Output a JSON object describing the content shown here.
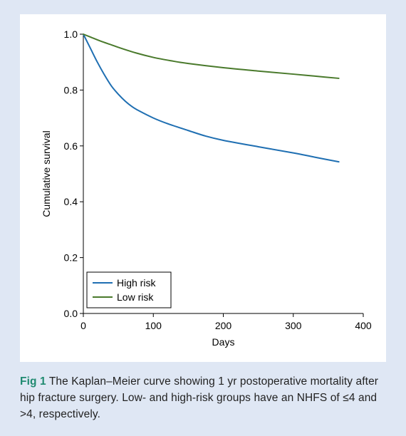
{
  "figure": {
    "label": "Fig 1",
    "caption": "The Kaplan–Meier curve showing 1 yr postoperative mortality after hip fracture surgery. Low- and high-risk groups have an NHFS of ≤4 and >4, respectively."
  },
  "colors": {
    "background": "#dfe7f4",
    "high_risk": "#1f6fb2",
    "low_risk": "#4a7a2c",
    "caption_label": "#1f8a70"
  },
  "chart_data": {
    "type": "line",
    "xlabel": "Days",
    "ylabel": "Cumulative survival",
    "xlim": [
      0,
      400
    ],
    "ylim": [
      0.0,
      1.0
    ],
    "xticks": [
      0,
      100,
      200,
      300,
      400
    ],
    "yticks": [
      0.0,
      0.2,
      0.4,
      0.6,
      0.8,
      1.0
    ],
    "xtick_labels": [
      "0",
      "100",
      "200",
      "300",
      "400"
    ],
    "ytick_labels": [
      "0.0",
      "0.2",
      "0.4",
      "0.6",
      "0.8",
      "1.0"
    ],
    "grid": false,
    "legend_position": "bottom-left",
    "series": [
      {
        "name": "High risk",
        "color": "#1f6fb2",
        "x": [
          0,
          10,
          20,
          30,
          40,
          50,
          60,
          70,
          80,
          100,
          120,
          150,
          175,
          200,
          250,
          300,
          330,
          365
        ],
        "y": [
          1.0,
          0.95,
          0.9,
          0.855,
          0.815,
          0.785,
          0.76,
          0.74,
          0.725,
          0.7,
          0.68,
          0.655,
          0.635,
          0.62,
          0.597,
          0.575,
          0.56,
          0.543
        ]
      },
      {
        "name": "Low risk",
        "color": "#4a7a2c",
        "x": [
          0,
          10,
          25,
          40,
          50,
          75,
          100,
          125,
          150,
          200,
          250,
          300,
          330,
          365
        ],
        "y": [
          1.0,
          0.99,
          0.975,
          0.962,
          0.953,
          0.933,
          0.917,
          0.905,
          0.895,
          0.88,
          0.868,
          0.857,
          0.85,
          0.842
        ]
      }
    ]
  }
}
